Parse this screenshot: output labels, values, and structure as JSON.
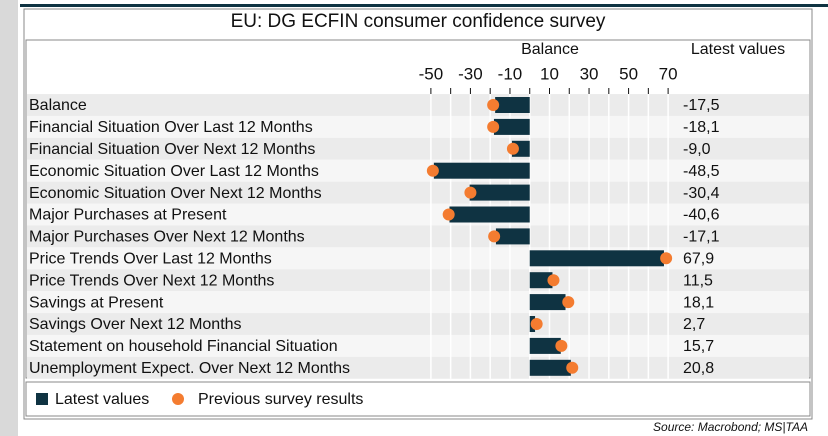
{
  "chart_data": {
    "type": "bar_dot",
    "title": "EU: DG ECFIN consumer confidence survey",
    "xlabel": "Balance",
    "value_column_title": "Latest values",
    "source": "Source: Macrobond; MS|TAA",
    "categories": [
      "Balance",
      "Financial Situation Over Last 12 Months",
      "Financial Situation Over Next 12 Months",
      "Economic Situation Over Last 12 Months",
      "Economic Situation Over Next 12 Months",
      "Major Purchases at Present",
      "Major Purchases Over Next 12 Months",
      "Price Trends Over Last 12 Months",
      "Price Trends Over Next 12 Months",
      "Savings at Present",
      "Savings Over Next 12 Months",
      "Statement on household Financial Situation",
      "Unemployment Expect. Over Next 12 Months"
    ],
    "series": [
      {
        "name": "Latest values",
        "color": "#0f3342",
        "values": [
          -17.5,
          -18.1,
          -9.0,
          -48.5,
          -30.4,
          -40.6,
          -17.1,
          67.9,
          11.5,
          18.1,
          2.7,
          15.7,
          20.8
        ],
        "value_labels": [
          "-17,5",
          "-18,1",
          "-9,0",
          "-48,5",
          "-30,4",
          "-40,6",
          "-17,1",
          "67,9",
          "11,5",
          "18,1",
          "2,7",
          "15,7",
          "20,8"
        ]
      },
      {
        "name": "Previous survey results",
        "color": "#f47c30",
        "values": [
          -18.5,
          -18.5,
          -8.5,
          -49,
          -30,
          -41,
          -18,
          69,
          12,
          19.5,
          3.5,
          16,
          21.5
        ]
      }
    ],
    "xlim": [
      -55,
      75
    ],
    "xticks": [
      -50,
      -30,
      -10,
      10,
      30,
      50,
      70
    ],
    "xticks_minor": [
      -40,
      -20,
      0,
      20,
      40,
      60
    ],
    "grid": true
  }
}
